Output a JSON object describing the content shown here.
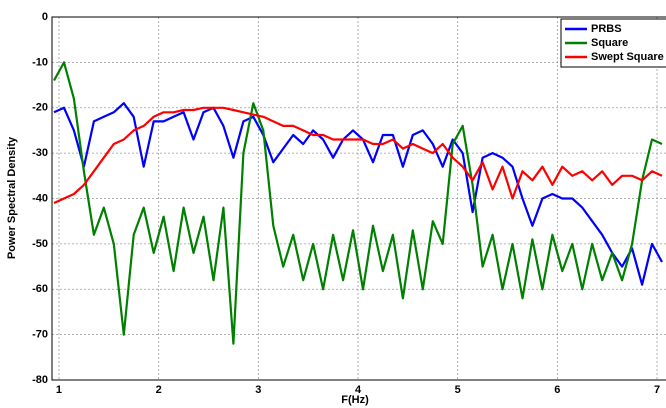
{
  "chart_data": {
    "type": "line",
    "xlabel": "F(Hz)",
    "ylabel": "Power Spectral Density",
    "x": [
      0.95,
      1.05,
      1.15,
      1.25,
      1.35,
      1.45,
      1.55,
      1.65,
      1.75,
      1.85,
      1.95,
      2.05,
      2.15,
      2.25,
      2.35,
      2.45,
      2.55,
      2.65,
      2.75,
      2.85,
      2.95,
      3.05,
      3.15,
      3.25,
      3.35,
      3.45,
      3.55,
      3.65,
      3.75,
      3.85,
      3.95,
      4.05,
      4.15,
      4.25,
      4.35,
      4.45,
      4.55,
      4.65,
      4.75,
      4.85,
      4.95,
      5.05,
      5.15,
      5.25,
      5.35,
      5.45,
      5.55,
      5.65,
      5.75,
      5.85,
      5.95,
      6.05,
      6.15,
      6.25,
      6.35,
      6.45,
      6.55,
      6.65,
      6.75,
      6.85,
      6.95,
      7.05
    ],
    "series": [
      {
        "name": "PRBS",
        "color": "#0000ff",
        "values": [
          -21,
          -20,
          -25,
          -33,
          -23,
          -22,
          -21,
          -19,
          -22,
          -33,
          -23,
          -23,
          -22,
          -21,
          -27,
          -21,
          -20,
          -24,
          -31,
          -23,
          -22,
          -26,
          -32,
          -29,
          -26,
          -28,
          -25,
          -27,
          -31,
          -27,
          -25,
          -27,
          -32,
          -26,
          -26,
          -33,
          -26,
          -25,
          -28,
          -33,
          -27,
          -30,
          -43,
          -31,
          -30,
          -31,
          -33,
          -40,
          -46,
          -40,
          -39,
          -40,
          -40,
          -42,
          -45,
          -48,
          -52,
          -55,
          -51,
          -59,
          -50,
          -54
        ]
      },
      {
        "name": "Square",
        "color": "#008000",
        "values": [
          -14,
          -10,
          -18,
          -34,
          -48,
          -42,
          -50,
          -70,
          -48,
          -42,
          -52,
          -44,
          -56,
          -42,
          -52,
          -44,
          -58,
          -42,
          -72,
          -30,
          -19,
          -25,
          -46,
          -55,
          -48,
          -58,
          -50,
          -60,
          -48,
          -58,
          -47,
          -60,
          -46,
          -56,
          -48,
          -62,
          -47,
          -60,
          -45,
          -50,
          -28,
          -24,
          -37,
          -55,
          -48,
          -60,
          -50,
          -62,
          -49,
          -60,
          -48,
          -56,
          -50,
          -60,
          -50,
          -58,
          -52,
          -58,
          -50,
          -36,
          -27,
          -28
        ]
      },
      {
        "name": "Swept Square",
        "color": "#ff0000",
        "values": [
          -41,
          -40,
          -39,
          -37,
          -34,
          -31,
          -28,
          -27,
          -25,
          -24,
          -22,
          -21,
          -21,
          -20.5,
          -20.5,
          -20,
          -20,
          -20,
          -20.5,
          -21,
          -21.5,
          -22,
          -23,
          -24,
          -24,
          -25,
          -26,
          -26,
          -27,
          -27,
          -27,
          -27,
          -28,
          -28,
          -27,
          -29,
          -28,
          -29,
          -30,
          -28,
          -31,
          -33,
          -36,
          -32,
          -38,
          -33,
          -40,
          -34,
          -36,
          -33,
          -37,
          -33,
          -35,
          -34,
          -36,
          -34,
          -37,
          -35,
          -35,
          -36,
          -34,
          -35
        ]
      }
    ],
    "xlim": [
      0.93,
      7.09
    ],
    "ylim": [
      -80,
      0
    ],
    "xticks": [
      1,
      2,
      3,
      4,
      5,
      6,
      7
    ],
    "yticks": [
      -80,
      -70,
      -60,
      -50,
      -40,
      -30,
      -20,
      -10,
      0
    ],
    "grid": true,
    "legend": "upper right"
  }
}
